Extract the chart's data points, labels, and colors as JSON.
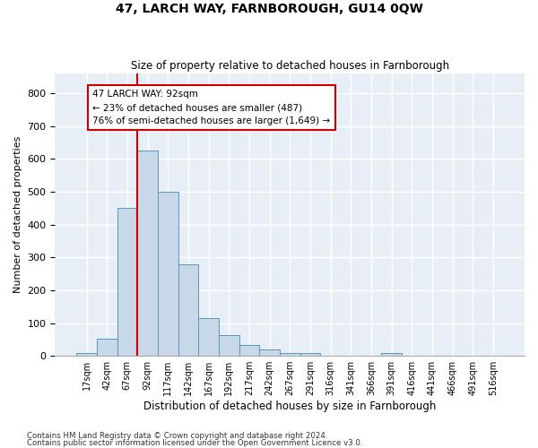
{
  "title": "47, LARCH WAY, FARNBOROUGH, GU14 0QW",
  "subtitle": "Size of property relative to detached houses in Farnborough",
  "xlabel": "Distribution of detached houses by size in Farnborough",
  "ylabel": "Number of detached properties",
  "bar_color": "#c8d8e8",
  "bar_edge_color": "#5599bb",
  "background_color": "#e8eef5",
  "grid_color": "#ffffff",
  "vline_color": "#cc0000",
  "vline_x_idx": 3,
  "annotation_text": "47 LARCH WAY: 92sqm\n← 23% of detached houses are smaller (487)\n76% of semi-detached houses are larger (1,649) →",
  "annotation_box_color": "#cc0000",
  "categories": [
    "17sqm",
    "42sqm",
    "67sqm",
    "92sqm",
    "117sqm",
    "142sqm",
    "167sqm",
    "192sqm",
    "217sqm",
    "242sqm",
    "267sqm",
    "291sqm",
    "316sqm",
    "341sqm",
    "366sqm",
    "391sqm",
    "416sqm",
    "441sqm",
    "466sqm",
    "491sqm",
    "516sqm"
  ],
  "values": [
    10,
    53,
    450,
    625,
    500,
    280,
    115,
    62,
    33,
    20,
    10,
    8,
    0,
    0,
    0,
    8,
    0,
    0,
    0,
    0,
    0
  ],
  "ylim": [
    0,
    860
  ],
  "yticks": [
    0,
    100,
    200,
    300,
    400,
    500,
    600,
    700,
    800
  ],
  "footnote1": "Contains HM Land Registry data © Crown copyright and database right 2024.",
  "footnote2": "Contains public sector information licensed under the Open Government Licence v3.0."
}
